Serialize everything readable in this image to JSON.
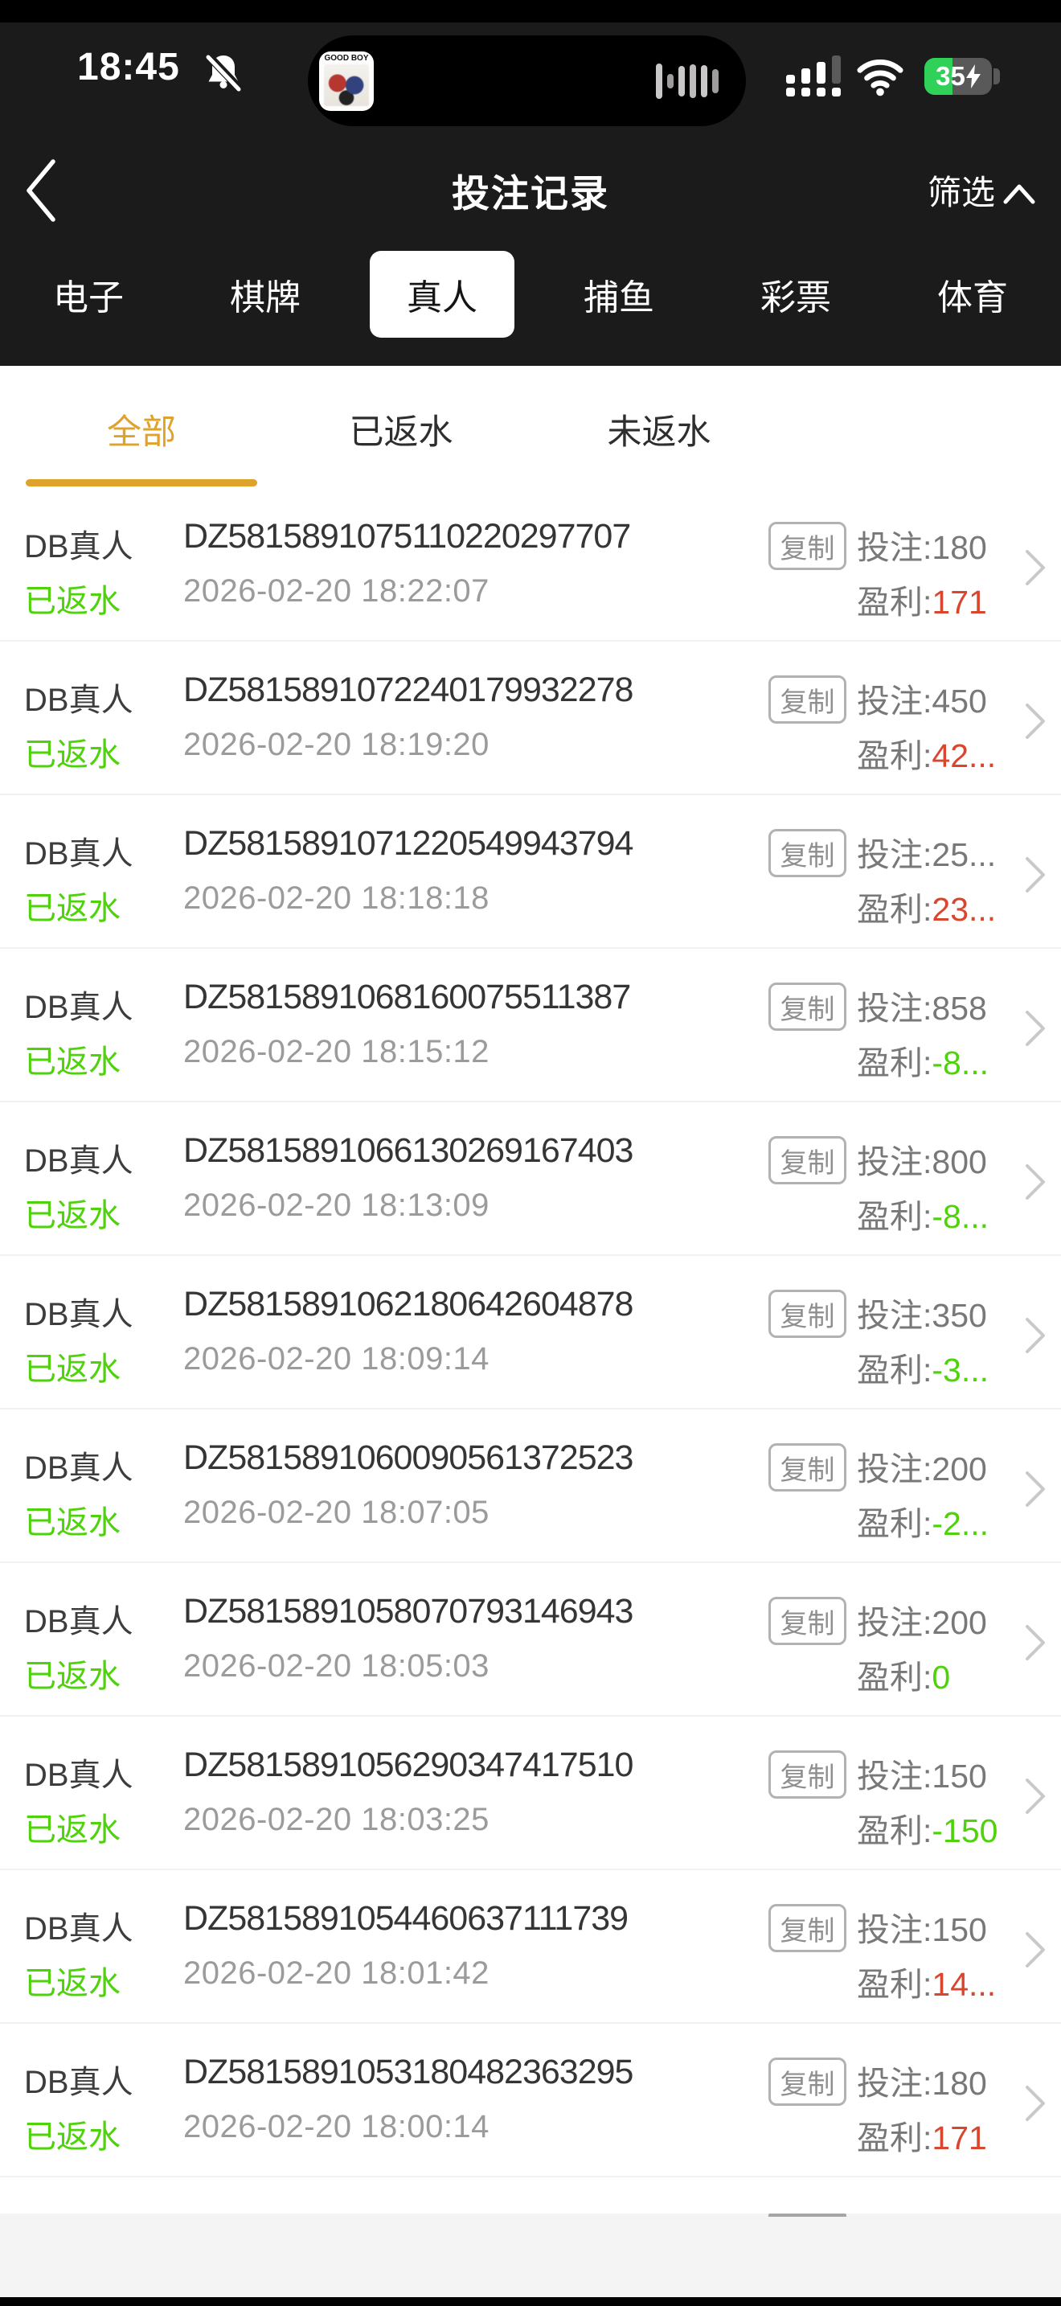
{
  "status_bar": {
    "time": "18:45",
    "album_label": "GOOD BOY",
    "battery_level": "35",
    "charging": true
  },
  "nav": {
    "title": "投注记录",
    "filter_label": "筛选"
  },
  "category_tabs": {
    "items": [
      {
        "label": "电子",
        "active": false
      },
      {
        "label": "棋牌",
        "active": false
      },
      {
        "label": "真人",
        "active": true
      },
      {
        "label": "捕鱼",
        "active": false
      },
      {
        "label": "彩票",
        "active": false
      },
      {
        "label": "体育",
        "active": false
      }
    ]
  },
  "filter_tabs": {
    "items": [
      {
        "label": "全部",
        "active": true
      },
      {
        "label": "已返水",
        "active": false
      },
      {
        "label": "未返水",
        "active": false
      }
    ]
  },
  "list": {
    "labels": {
      "copy": "复制",
      "bet": "投注:",
      "profit": "盈利:"
    },
    "records": [
      {
        "provider": "DB真人",
        "status": "已返水",
        "order": "DZ5815891075110220297707",
        "datetime": "2026-02-20 18:22:07",
        "bet": "180",
        "profit": "171",
        "profit_color": "red"
      },
      {
        "provider": "DB真人",
        "status": "已返水",
        "order": "DZ5815891072240179932278",
        "datetime": "2026-02-20 18:19:20",
        "bet": "450",
        "profit": "42...",
        "profit_color": "red"
      },
      {
        "provider": "DB真人",
        "status": "已返水",
        "order": "DZ5815891071220549943794",
        "datetime": "2026-02-20 18:18:18",
        "bet": "25...",
        "profit": "23...",
        "profit_color": "red"
      },
      {
        "provider": "DB真人",
        "status": "已返水",
        "order": "DZ5815891068160075511387",
        "datetime": "2026-02-20 18:15:12",
        "bet": "858",
        "profit": "-8...",
        "profit_color": "green"
      },
      {
        "provider": "DB真人",
        "status": "已返水",
        "order": "DZ5815891066130269167403",
        "datetime": "2026-02-20 18:13:09",
        "bet": "800",
        "profit": "-8...",
        "profit_color": "green"
      },
      {
        "provider": "DB真人",
        "status": "已返水",
        "order": "DZ5815891062180642604878",
        "datetime": "2026-02-20 18:09:14",
        "bet": "350",
        "profit": "-3...",
        "profit_color": "green"
      },
      {
        "provider": "DB真人",
        "status": "已返水",
        "order": "DZ5815891060090561372523",
        "datetime": "2026-02-20 18:07:05",
        "bet": "200",
        "profit": "-2...",
        "profit_color": "green"
      },
      {
        "provider": "DB真人",
        "status": "已返水",
        "order": "DZ5815891058070793146943",
        "datetime": "2026-02-20 18:05:03",
        "bet": "200",
        "profit": "0",
        "profit_color": "green"
      },
      {
        "provider": "DB真人",
        "status": "已返水",
        "order": "DZ5815891056290347417510",
        "datetime": "2026-02-20 18:03:25",
        "bet": "150",
        "profit": "-150",
        "profit_color": "green"
      },
      {
        "provider": "DB真人",
        "status": "已返水",
        "order": "DZ5815891054460637111739",
        "datetime": "2026-02-20 18:01:42",
        "bet": "150",
        "profit": "14...",
        "profit_color": "red"
      },
      {
        "provider": "DB真人",
        "status": "已返水",
        "order": "DZ5815891053180482363295",
        "datetime": "2026-02-20 18:00:14",
        "bet": "180",
        "profit": "171",
        "profit_color": "red"
      }
    ]
  },
  "colors": {
    "header_bg": "#1b1b1b",
    "accent_orange": "#dfa32b",
    "profit_red": "#da452e",
    "profit_green": "#4ed30a",
    "status_green": "#4ed30a",
    "battery_green": "#30d158"
  }
}
